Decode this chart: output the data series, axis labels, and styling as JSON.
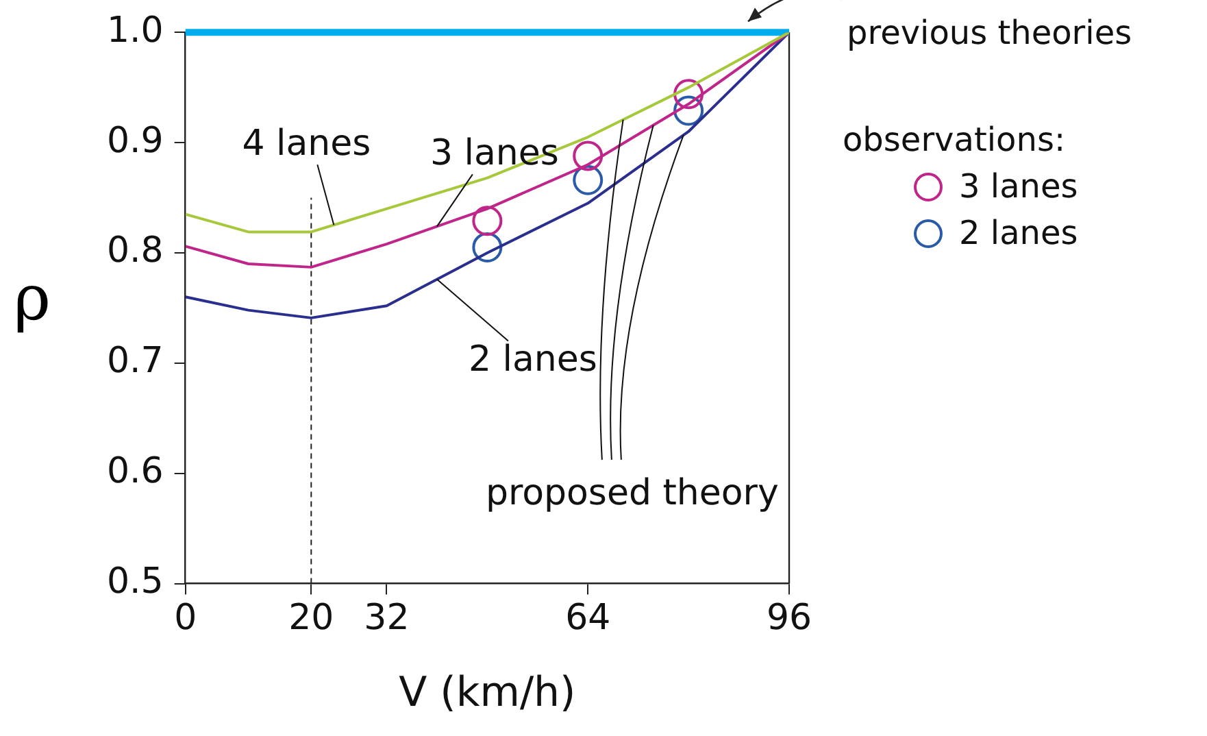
{
  "chart_data": {
    "type": "line",
    "xlabel": "V (km/h)",
    "ylabel": "ρ",
    "legend_title": "observations:",
    "legend": "right",
    "grid": false,
    "xlim": [
      0,
      96
    ],
    "xticks": [
      0,
      20,
      32,
      64,
      96
    ],
    "ylim": [
      0.5,
      1.0
    ],
    "yticks": [
      0.5,
      0.6,
      0.7,
      0.8,
      0.9,
      {
        "value": 1.0,
        "label": "1.0"
      }
    ],
    "x": [
      0,
      10,
      20,
      32,
      48,
      64,
      80,
      96
    ],
    "series": [
      {
        "name": "4 lanes",
        "color": "#a8c83c",
        "marker": "none",
        "values": [
          0.835,
          0.819,
          0.819,
          0.84,
          0.868,
          0.905,
          0.95,
          1.0
        ]
      },
      {
        "name": "3 lanes",
        "color": "#c0268a",
        "marker": "none",
        "values": [
          0.806,
          0.79,
          0.787,
          0.808,
          0.84,
          0.88,
          0.935,
          1.0
        ]
      },
      {
        "name": "2 lanes",
        "color": "#2a2f8f",
        "marker": "none",
        "values": [
          0.76,
          0.748,
          0.741,
          0.752,
          0.8,
          0.845,
          0.91,
          1.0
        ]
      },
      {
        "name": "3 lanes",
        "type": "scatter",
        "color": "#c0268a",
        "marker": "circle",
        "x": [
          48,
          64,
          80
        ],
        "values": [
          0.829,
          0.888,
          0.944
        ]
      },
      {
        "name": "2 lanes",
        "type": "scatter",
        "color": "#2a5aa8",
        "marker": "circle",
        "x": [
          48,
          64,
          80
        ],
        "values": [
          0.805,
          0.866,
          0.929
        ]
      }
    ],
    "ref_lines": [
      {
        "axis": "y",
        "value": 1.0,
        "label": "previous theories",
        "color": "#00aeef"
      },
      {
        "axis": "x",
        "value": 20,
        "line_style": "dashed"
      }
    ],
    "annotations": [
      "proposed theory"
    ]
  }
}
